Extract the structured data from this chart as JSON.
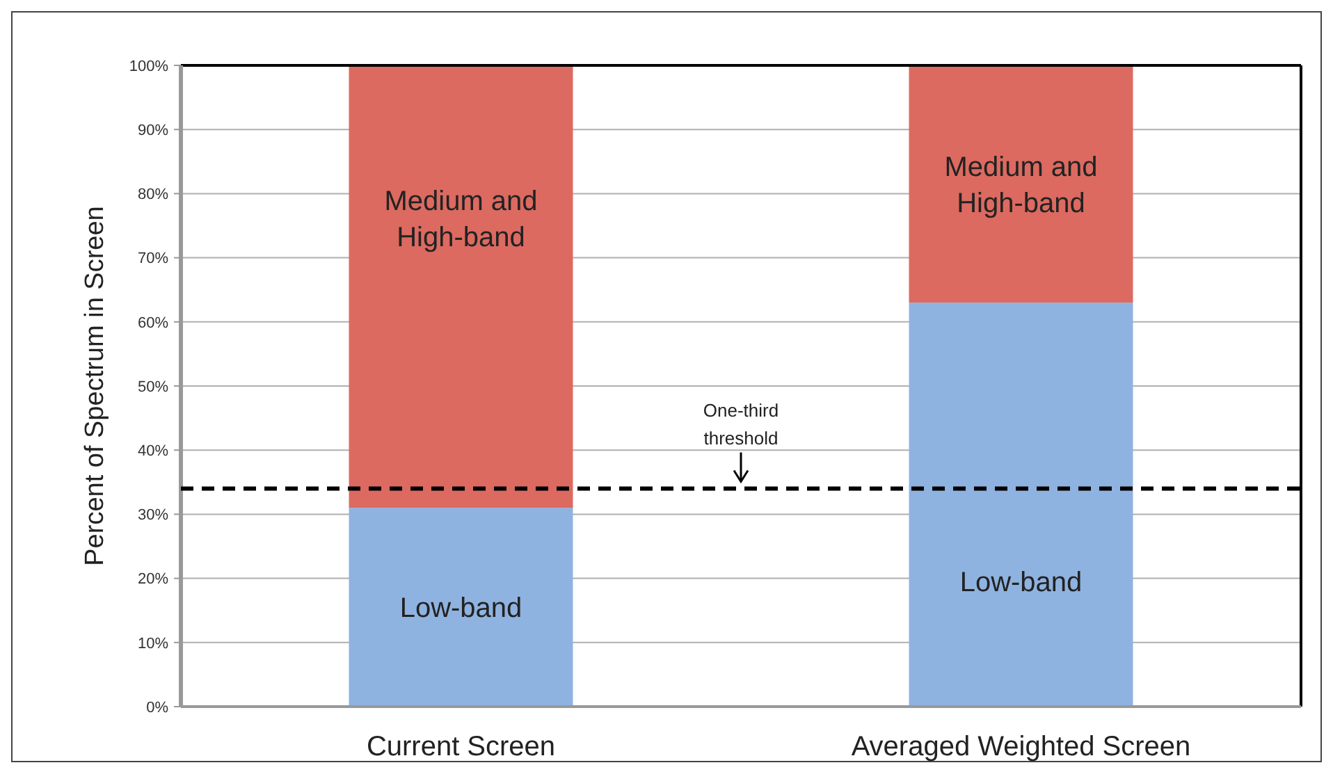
{
  "chart_data": {
    "type": "bar",
    "stacked": true,
    "ylabel": "Percent of Spectrum in Screen",
    "categories": [
      "Current Screen",
      "Averaged Weighted Screen"
    ],
    "series": [
      {
        "name": "Low-band",
        "color": "#8fb3e0",
        "values": [
          31,
          63
        ]
      },
      {
        "name": "Medium and High-band",
        "color": "#dc6a60",
        "values": [
          69,
          37
        ]
      }
    ],
    "ylim": [
      0,
      100
    ],
    "yticks": [
      {
        "value": 0,
        "label": "0%"
      },
      {
        "value": 10,
        "label": "10%"
      },
      {
        "value": 20,
        "label": "20%"
      },
      {
        "value": 30,
        "label": "30%"
      },
      {
        "value": 40,
        "label": "40%"
      },
      {
        "value": 50,
        "label": "50%"
      },
      {
        "value": 60,
        "label": "60%"
      },
      {
        "value": 70,
        "label": "70%"
      },
      {
        "value": 80,
        "label": "80%"
      },
      {
        "value": 90,
        "label": "90%"
      },
      {
        "value": 100,
        "label": "100%"
      }
    ],
    "grid": "y",
    "ref_lines": [
      {
        "axis": "y",
        "value": 34,
        "label": "One-third threshold",
        "color": "#000000",
        "line_style": "dashed"
      }
    ]
  }
}
